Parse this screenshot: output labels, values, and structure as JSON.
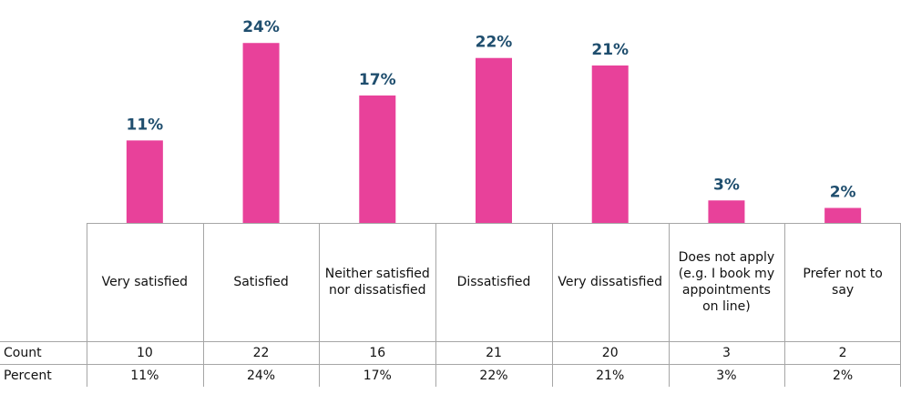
{
  "chart_data": {
    "type": "bar",
    "categories": [
      "Very satisfied",
      "Satisfied",
      "Neither satisfied nor dissatisfied",
      "Dissatisfied",
      "Very dissatisfied",
      "Does not apply (e.g. I book my appointments on line)",
      "Prefer not to say"
    ],
    "values": [
      11,
      24,
      17,
      22,
      21,
      3,
      2
    ],
    "value_labels": [
      "11%",
      "24%",
      "17%",
      "22%",
      "21%",
      "3%",
      "2%"
    ],
    "color": "#e8419a",
    "ylim": [
      0,
      25
    ],
    "table": {
      "rows": [
        {
          "label": "Count",
          "values": [
            10,
            22,
            16,
            21,
            20,
            3,
            2
          ]
        },
        {
          "label": "Percent",
          "values": [
            "11%",
            "24%",
            "17%",
            "22%",
            "21%",
            "3%",
            "2%"
          ]
        }
      ]
    }
  }
}
